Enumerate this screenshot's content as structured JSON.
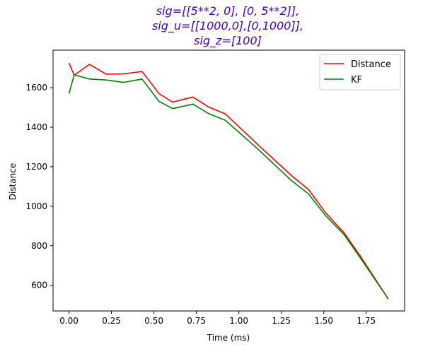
{
  "chart_data": {
    "type": "line",
    "title_lines": [
      "sig=[[5**2, 0], [0, 5**2]],",
      "sig_u=[[1000,0],[0,1000]],",
      "sig_z=[100]"
    ],
    "xlabel": "Time (ms)",
    "ylabel": "Distance",
    "xlim": [
      -0.094,
      1.976
    ],
    "ylim": [
      470,
      1790
    ],
    "x_ticks": [
      0.0,
      0.25,
      0.5,
      0.75,
      1.0,
      1.25,
      1.5,
      1.75
    ],
    "x_tick_labels": [
      "0.00",
      "0.25",
      "0.50",
      "0.75",
      "1.00",
      "1.25",
      "1.50",
      "1.75"
    ],
    "y_ticks": [
      600,
      800,
      1000,
      1200,
      1400,
      1600
    ],
    "y_tick_labels": [
      "600",
      "800",
      "1000",
      "1200",
      "1400",
      "1600"
    ],
    "grid": false,
    "legend_position": "top-right",
    "series": [
      {
        "name": "Distance",
        "color": "#ff0000",
        "x": [
          0.0,
          0.03,
          0.12,
          0.22,
          0.32,
          0.43,
          0.53,
          0.61,
          0.73,
          0.82,
          0.92,
          1.01,
          1.12,
          1.21,
          1.31,
          1.41,
          1.51,
          1.62,
          1.72,
          1.88
        ],
        "y": [
          1725,
          1663,
          1718,
          1668,
          1670,
          1682,
          1570,
          1527,
          1553,
          1503,
          1467,
          1395,
          1305,
          1234,
          1155,
          1085,
          968,
          865,
          742,
          530
        ]
      },
      {
        "name": "KF",
        "color": "#008000",
        "x": [
          0.0,
          0.03,
          0.12,
          0.22,
          0.32,
          0.43,
          0.53,
          0.61,
          0.73,
          0.82,
          0.92,
          1.01,
          1.12,
          1.21,
          1.31,
          1.41,
          1.51,
          1.62,
          1.72,
          1.88
        ],
        "y": [
          1571,
          1665,
          1644,
          1639,
          1627,
          1644,
          1531,
          1494,
          1517,
          1470,
          1435,
          1367,
          1283,
          1210,
          1130,
          1063,
          953,
          856,
          733,
          530
        ]
      }
    ]
  }
}
